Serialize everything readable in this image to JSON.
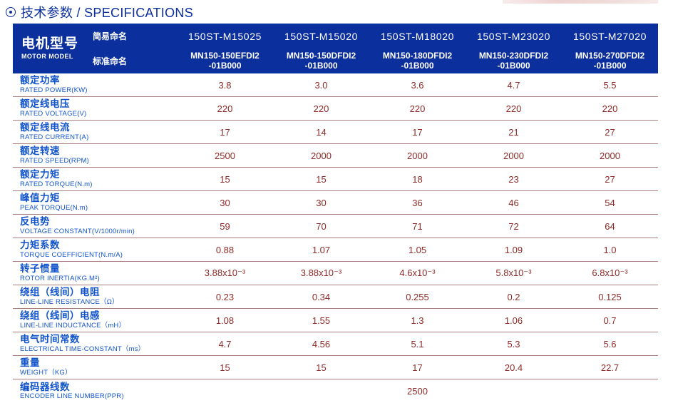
{
  "section": {
    "title_zh": "技术参数",
    "title_sep": " / ",
    "title_en": "SPECIFICATIONS"
  },
  "colors": {
    "header_bg": "#0b2f9c",
    "label_blue": "#1254cb",
    "value_red": "#8e2a27",
    "divider": "#a87e7e",
    "title_blue": "#0c2f9e"
  },
  "table": {
    "header": {
      "model_label_zh": "电机型号",
      "model_label_en": "MOTOR MODEL",
      "simple_name_label": "简易命名",
      "standard_name_label": "标准命名",
      "columns": [
        {
          "simple": "150ST-M15025",
          "standard": "MN150-150EFDI2\n-01B000"
        },
        {
          "simple": "150ST-M15020",
          "standard": "MN150-150DFDI2\n-01B000"
        },
        {
          "simple": "150ST-M18020",
          "standard": "MN150-180DFDI2\n-01B000"
        },
        {
          "simple": "150ST-M23020",
          "standard": "MN150-230DFDI2\n-01B000"
        },
        {
          "simple": "150ST-M27020",
          "standard": "MN150-270DFDI2\n-01B000"
        }
      ]
    },
    "rows": [
      {
        "zh": "额定功率",
        "en": "RATED POWER(KW)",
        "values": [
          "3.8",
          "3.0",
          "3.6",
          "4.7",
          "5.5"
        ]
      },
      {
        "zh": "额定线电压",
        "en": "RATED VOLTAGE(V)",
        "values": [
          "220",
          "220",
          "220",
          "220",
          "220"
        ]
      },
      {
        "zh": "额定线电流",
        "en": "RATED CURRENT(A)",
        "values": [
          "17",
          "14",
          "17",
          "21",
          "27"
        ]
      },
      {
        "zh": "额定转速",
        "en": "RATED SPEED(RPM)",
        "values": [
          "2500",
          "2000",
          "2000",
          "2000",
          "2000"
        ]
      },
      {
        "zh": "额定力矩",
        "en": "RATED TORQUE(N.m)",
        "values": [
          "15",
          "15",
          "18",
          "23",
          "27"
        ]
      },
      {
        "zh": "峰值力矩",
        "en": "PEAK TORQUE(N.m)",
        "values": [
          "30",
          "30",
          "36",
          "46",
          "54"
        ]
      },
      {
        "zh": "反电势",
        "en": "VOLTAGE CONSTANT(V/1000r/min)",
        "values": [
          "59",
          "70",
          "71",
          "72",
          "64"
        ]
      },
      {
        "zh": "力矩系数",
        "en": "TORQUE COEFFICIENT(N.m/A)",
        "values": [
          "0.88",
          "1.07",
          "1.05",
          "1.09",
          "1.0"
        ]
      },
      {
        "zh": "转子惯量",
        "en": "ROTOR INERTIA(KG.M²)",
        "values": [
          "3.88x10⁻³",
          "3.88x10⁻³",
          "4.6x10⁻³",
          "5.8x10⁻³",
          "6.8x10⁻³"
        ]
      },
      {
        "zh": "绕组（线间）电阻",
        "en": "LINE-LINE RESISTANCE（Ω）",
        "values": [
          "0.23",
          "0.34",
          "0.255",
          "0.2",
          "0.125"
        ]
      },
      {
        "zh": "绕组（线间）电感",
        "en": "LINE-LINE INDUCTANCE（mH）",
        "values": [
          "1.08",
          "1.55",
          "1.3",
          "1.06",
          "0.7"
        ]
      },
      {
        "zh": "电气时间常数",
        "en": "ELECTRICAL TIME-CONSTANT（ms）",
        "values": [
          "4.7",
          "4.56",
          "5.1",
          "5.3",
          "5.6"
        ]
      },
      {
        "zh": "重量",
        "en": "WEIGHT（KG）",
        "values": [
          "15",
          "15",
          "17",
          "20.4",
          "22.7"
        ]
      },
      {
        "zh": "编码器线数",
        "en": "ENCODER LINE NUMBER(PPR)",
        "merged_value": "2500"
      }
    ]
  }
}
